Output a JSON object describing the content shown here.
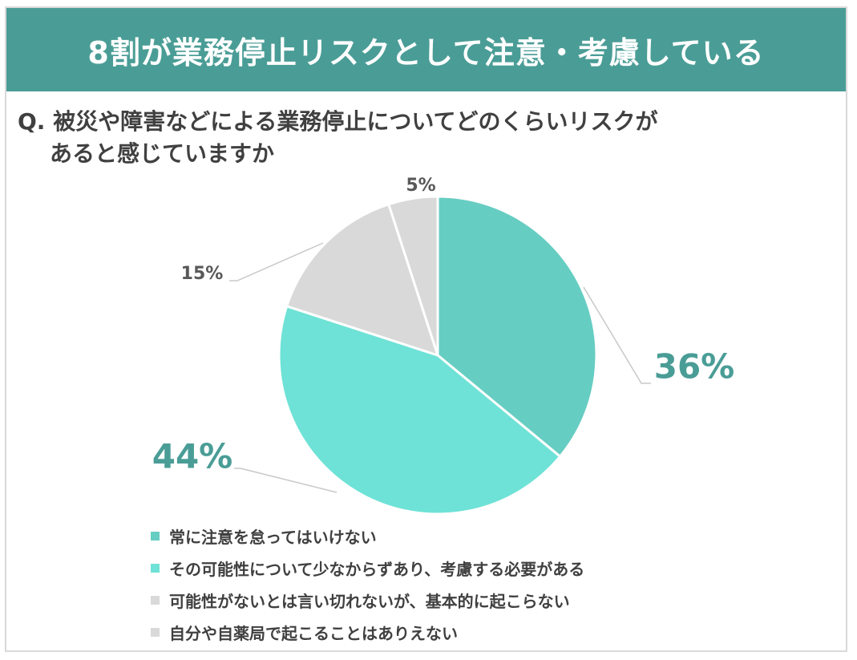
{
  "header": {
    "title": "8割が業務停止リスクとして注意・考慮している"
  },
  "question": {
    "line1": "Q. 被災や障害などによる業務停止についてどのくらいリスクが",
    "line2": "あると感じていますか"
  },
  "chart_data": {
    "type": "pie",
    "start": "top",
    "direction": "clockwise",
    "slices": [
      {
        "label": "常に注意を怠ってはいけない",
        "value": 36,
        "display": "36%",
        "color": "#66cdc2",
        "label_color": "#4a9d96"
      },
      {
        "label": "その可能性について少なからずあり、考慮する必要がある",
        "value": 44,
        "display": "44%",
        "color": "#6ee2d6",
        "label_color": "#4a9d96"
      },
      {
        "label": "可能性がないとは言い切れないが、基本的に起こらない",
        "value": 15,
        "display": "15%",
        "color": "#d9d9d9",
        "label_color": "#595959"
      },
      {
        "label": "自分や自薬局で起こることはありえない",
        "value": 5,
        "display": "5%",
        "color": "#d9d9d9",
        "label_color": "#595959"
      }
    ],
    "legend_position": "bottom-left"
  }
}
